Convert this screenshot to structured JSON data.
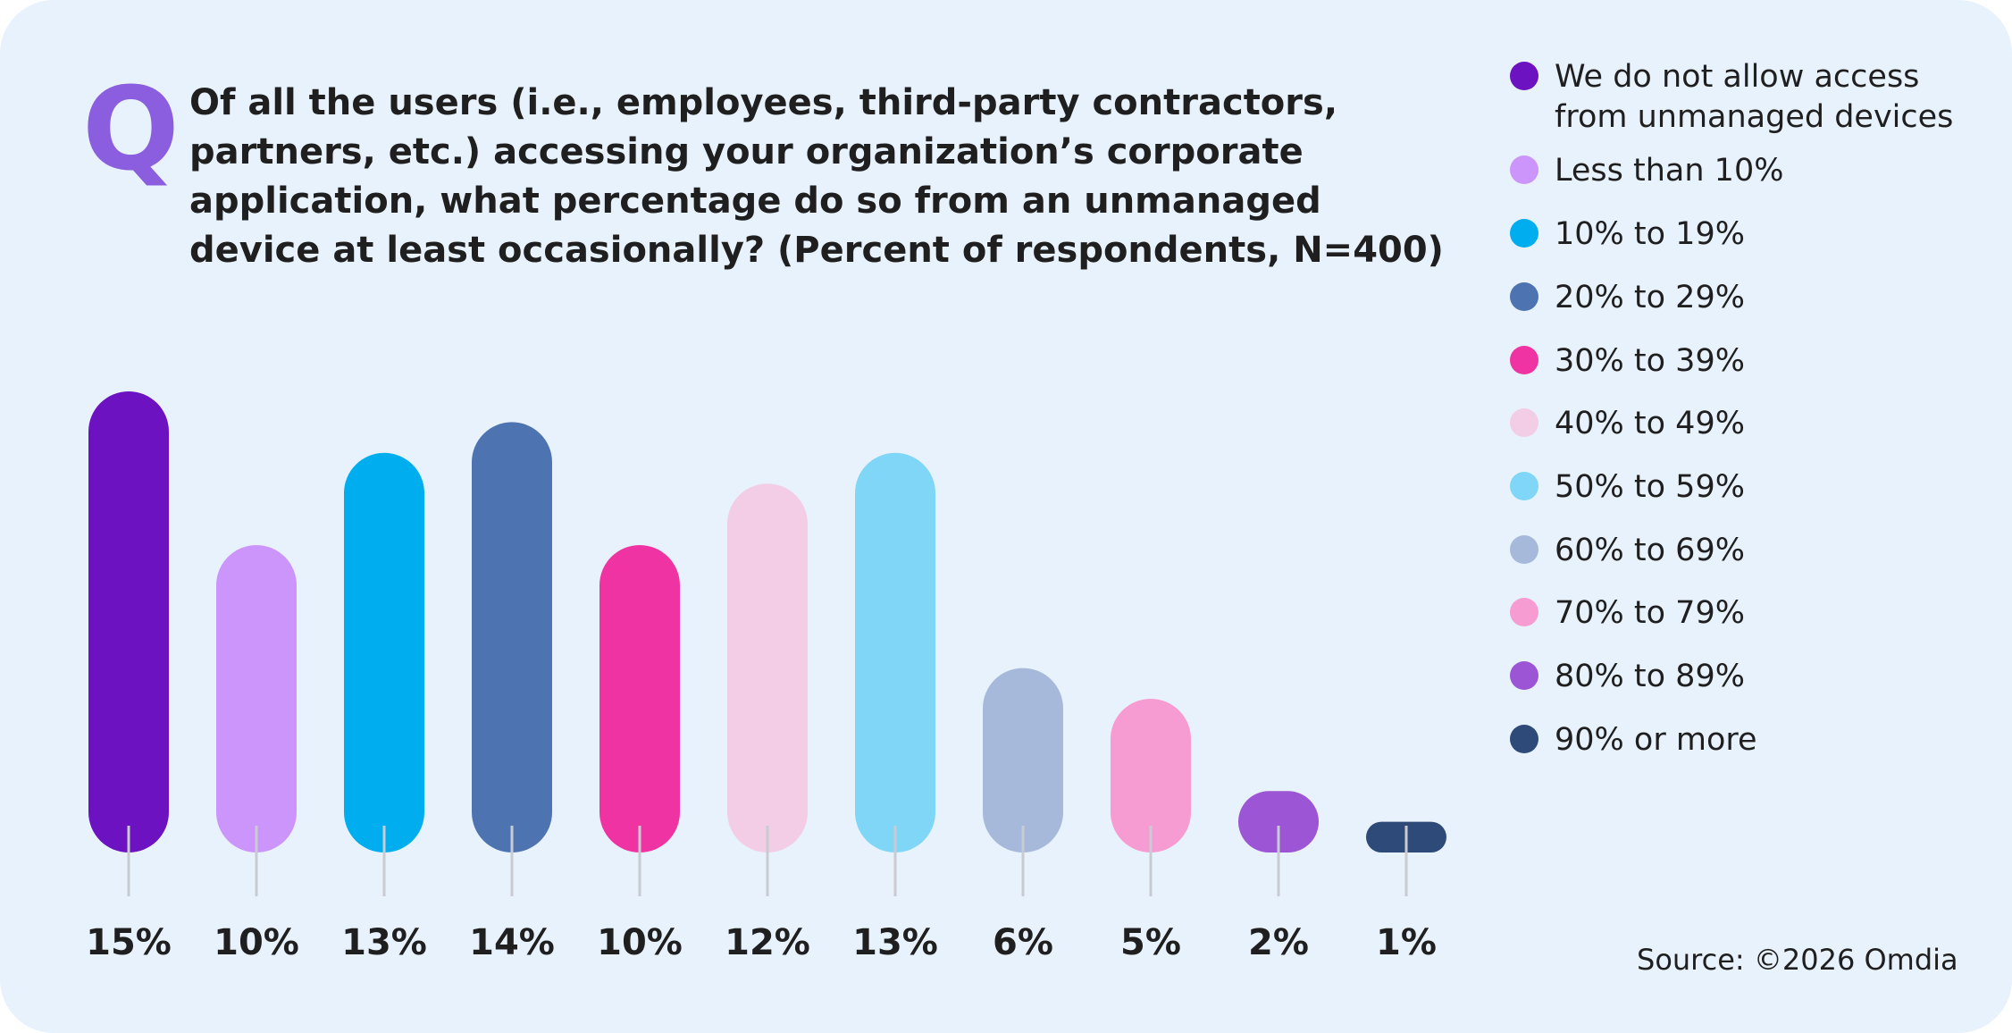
{
  "question_mark": "Q",
  "question": "Of all the users (i.e., employees, third-party contractors, partners, etc.) accessing your organization’s corporate application, what percentage do so from an unmanaged device at least occasionally? (Percent of respondents, N=400)",
  "source": "Source: ©2026 Omdia",
  "chart_data": {
    "type": "bar",
    "title": "Of all the users (i.e., employees, third-party contractors, partners, etc.) accessing your organization’s corporate application, what percentage do so from an unmanaged device at least occasionally? (Percent of respondents, N=400)",
    "categories": [
      "We do not allow access from unmanaged devices",
      "Less than 10%",
      "10% to 19%",
      "20% to 29%",
      "30% to 39%",
      "40% to 49%",
      "50% to 59%",
      "60% to 69%",
      "70% to 79%",
      "80% to 89%",
      "90% or more"
    ],
    "values": [
      15,
      10,
      13,
      14,
      10,
      12,
      13,
      6,
      5,
      2,
      1
    ],
    "value_labels": [
      "15%",
      "10%",
      "13%",
      "14%",
      "10%",
      "12%",
      "13%",
      "6%",
      "5%",
      "2%",
      "1%"
    ],
    "colors": [
      "#6c12c0",
      "#cc95fb",
      "#00aeef",
      "#4e73b1",
      "#f033a2",
      "#f3cde6",
      "#80d6f7",
      "#a6b9da",
      "#f79cd2",
      "#9c55d5",
      "#2e4a78"
    ],
    "xlabel": "",
    "ylabel": "",
    "ylim": [
      0,
      15
    ],
    "grid": false,
    "legend_position": "right"
  }
}
